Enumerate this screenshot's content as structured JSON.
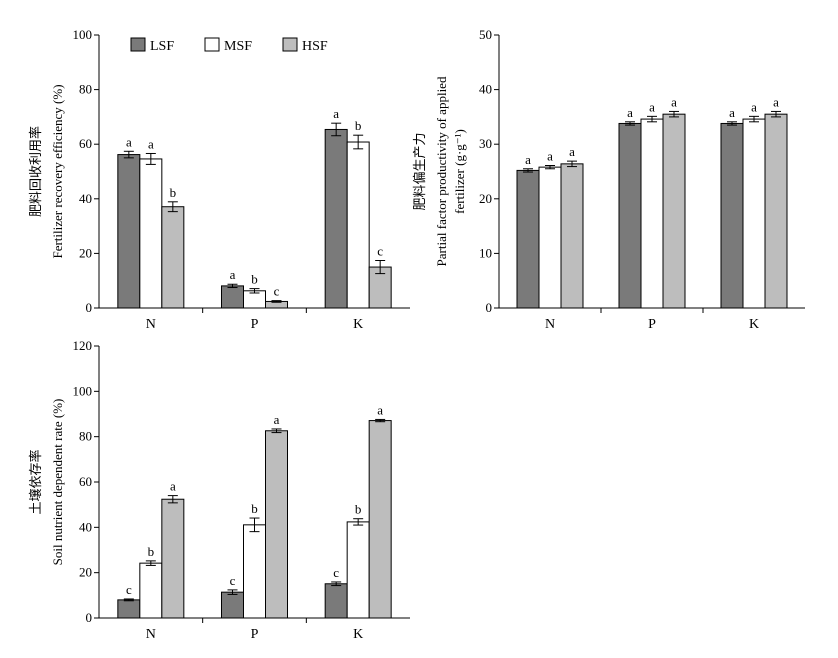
{
  "legend": {
    "items": [
      {
        "label": "LSF",
        "color": "#7a7a7a"
      },
      {
        "label": "MSF",
        "color": "#ffffff"
      },
      {
        "label": "HSF",
        "color": "#bdbdbd"
      }
    ]
  },
  "chart_data": [
    {
      "type": "bar",
      "title": "",
      "ylabel_cn": "肥料回收利用率",
      "ylabel": "Fertilizer recovery efficiency (%)",
      "xlabel": "",
      "categories": [
        "N",
        "P",
        "K"
      ],
      "ylim": [
        0,
        100
      ],
      "yticks": [
        0,
        20,
        40,
        60,
        80,
        100
      ],
      "grid": false,
      "series": [
        {
          "name": "LSF",
          "values": [
            56.2,
            8.1,
            65.4
          ],
          "errors": [
            1.2,
            0.6,
            2.3
          ],
          "letters": [
            "a",
            "a",
            "a"
          ]
        },
        {
          "name": "MSF",
          "values": [
            54.6,
            6.3,
            60.8
          ],
          "errors": [
            2.0,
            0.8,
            2.5
          ],
          "letters": [
            "a",
            "b",
            "b"
          ]
        },
        {
          "name": "HSF",
          "values": [
            37.1,
            2.4,
            15.0
          ],
          "errors": [
            1.8,
            0.3,
            2.4
          ],
          "letters": [
            "b",
            "c",
            "c"
          ]
        }
      ]
    },
    {
      "type": "bar",
      "title": "",
      "ylabel_cn": "肥料偏生产力",
      "ylabel": "Partial factor productivity of applied fertilizer (g·g⁻¹)",
      "xlabel": "",
      "categories": [
        "N",
        "P",
        "K"
      ],
      "ylim": [
        0,
        50
      ],
      "yticks": [
        0,
        10,
        20,
        30,
        40,
        50
      ],
      "grid": false,
      "series": [
        {
          "name": "LSF",
          "values": [
            25.2,
            33.8,
            33.8
          ],
          "errors": [
            0.3,
            0.3,
            0.3
          ],
          "letters": [
            "a",
            "a",
            "a"
          ]
        },
        {
          "name": "MSF",
          "values": [
            25.8,
            34.6,
            34.6
          ],
          "errors": [
            0.3,
            0.5,
            0.5
          ],
          "letters": [
            "a",
            "a",
            "a"
          ]
        },
        {
          "name": "HSF",
          "values": [
            26.4,
            35.5,
            35.5
          ],
          "errors": [
            0.5,
            0.5,
            0.5
          ],
          "letters": [
            "a",
            "a",
            "a"
          ]
        }
      ]
    },
    {
      "type": "bar",
      "title": "",
      "ylabel_cn": "土壤依存率",
      "ylabel": "Soil nutrient dependent rate (%)",
      "xlabel": "",
      "categories": [
        "N",
        "P",
        "K"
      ],
      "ylim": [
        0,
        120
      ],
      "yticks": [
        0,
        20,
        40,
        60,
        80,
        100,
        120
      ],
      "grid": false,
      "series": [
        {
          "name": "LSF",
          "values": [
            8.0,
            11.4,
            15.1
          ],
          "errors": [
            0.4,
            1.0,
            0.8
          ],
          "letters": [
            "c",
            "c",
            "c"
          ]
        },
        {
          "name": "MSF",
          "values": [
            24.2,
            41.1,
            42.4
          ],
          "errors": [
            1.0,
            3.0,
            1.4
          ],
          "letters": [
            "b",
            "b",
            "b"
          ]
        },
        {
          "name": "HSF",
          "values": [
            52.4,
            82.6,
            87.1
          ],
          "errors": [
            1.6,
            0.8,
            0.5
          ],
          "letters": [
            "a",
            "a",
            "a"
          ]
        }
      ]
    }
  ]
}
